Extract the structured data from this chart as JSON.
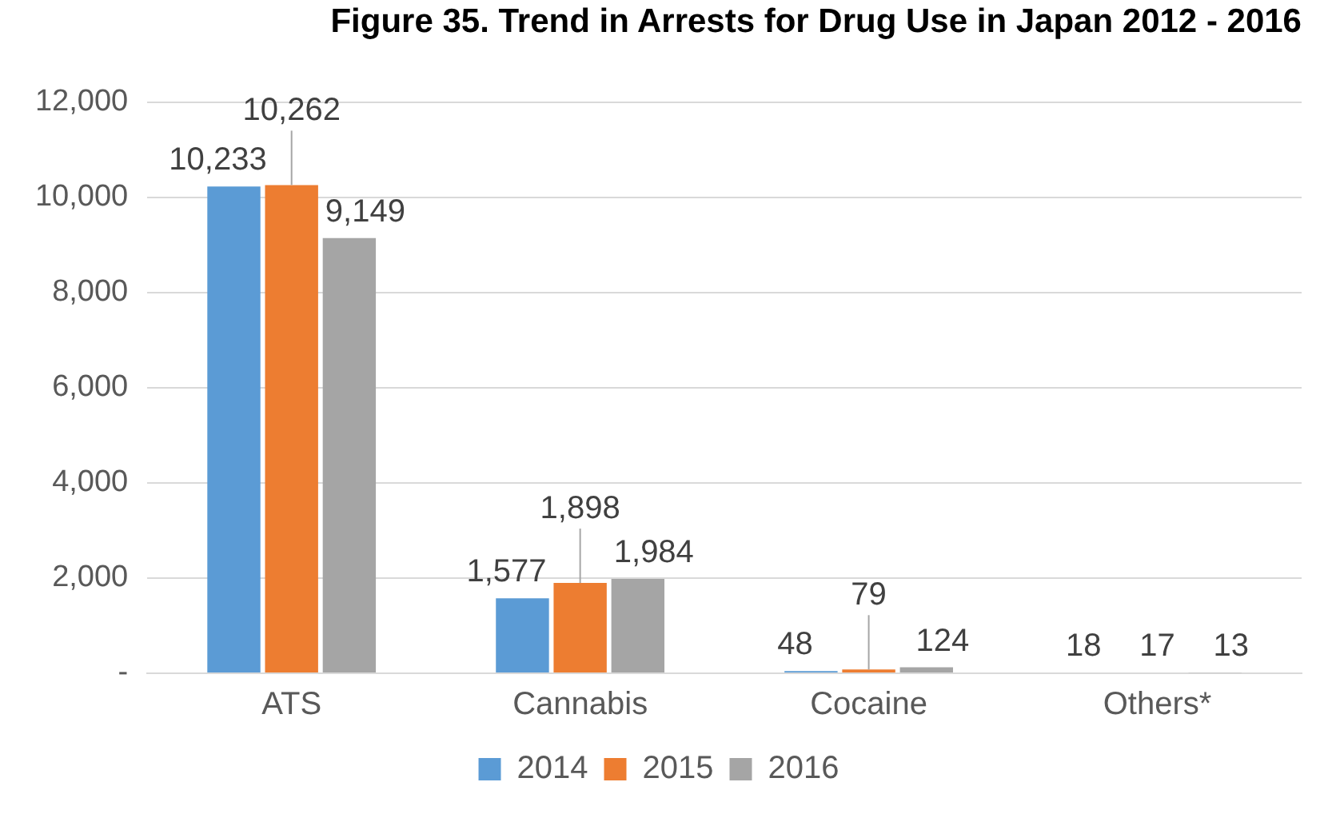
{
  "chart_data": {
    "type": "bar",
    "title": "Figure 35. Trend in Arrests for Drug Use in Japan 2012 - 2016",
    "categories": [
      "ATS",
      "Cannabis",
      "Cocaine",
      "Others*"
    ],
    "series": [
      {
        "name": "2014",
        "color": "#5b9bd5",
        "values": [
          10233,
          1577,
          48,
          18
        ],
        "value_labels": [
          "10,233",
          "1,577",
          "48",
          "18"
        ]
      },
      {
        "name": "2015",
        "color": "#ed7d31",
        "values": [
          10262,
          1898,
          79,
          17
        ],
        "value_labels": [
          "10,262",
          "1,898",
          "79",
          "17"
        ]
      },
      {
        "name": "2016",
        "color": "#a5a5a5",
        "values": [
          9149,
          1984,
          124,
          13
        ],
        "value_labels": [
          "9,149",
          "1,984",
          "124",
          "13"
        ]
      }
    ],
    "ylim": [
      0,
      12000
    ],
    "yticks": [
      {
        "value": 0,
        "label": "-"
      },
      {
        "value": 2000,
        "label": "2,000"
      },
      {
        "value": 4000,
        "label": "4,000"
      },
      {
        "value": 6000,
        "label": "6,000"
      },
      {
        "value": 8000,
        "label": "8,000"
      },
      {
        "value": 10000,
        "label": "10,000"
      },
      {
        "value": 12000,
        "label": "12,000"
      }
    ],
    "grid": "y",
    "legend": "bottom"
  }
}
